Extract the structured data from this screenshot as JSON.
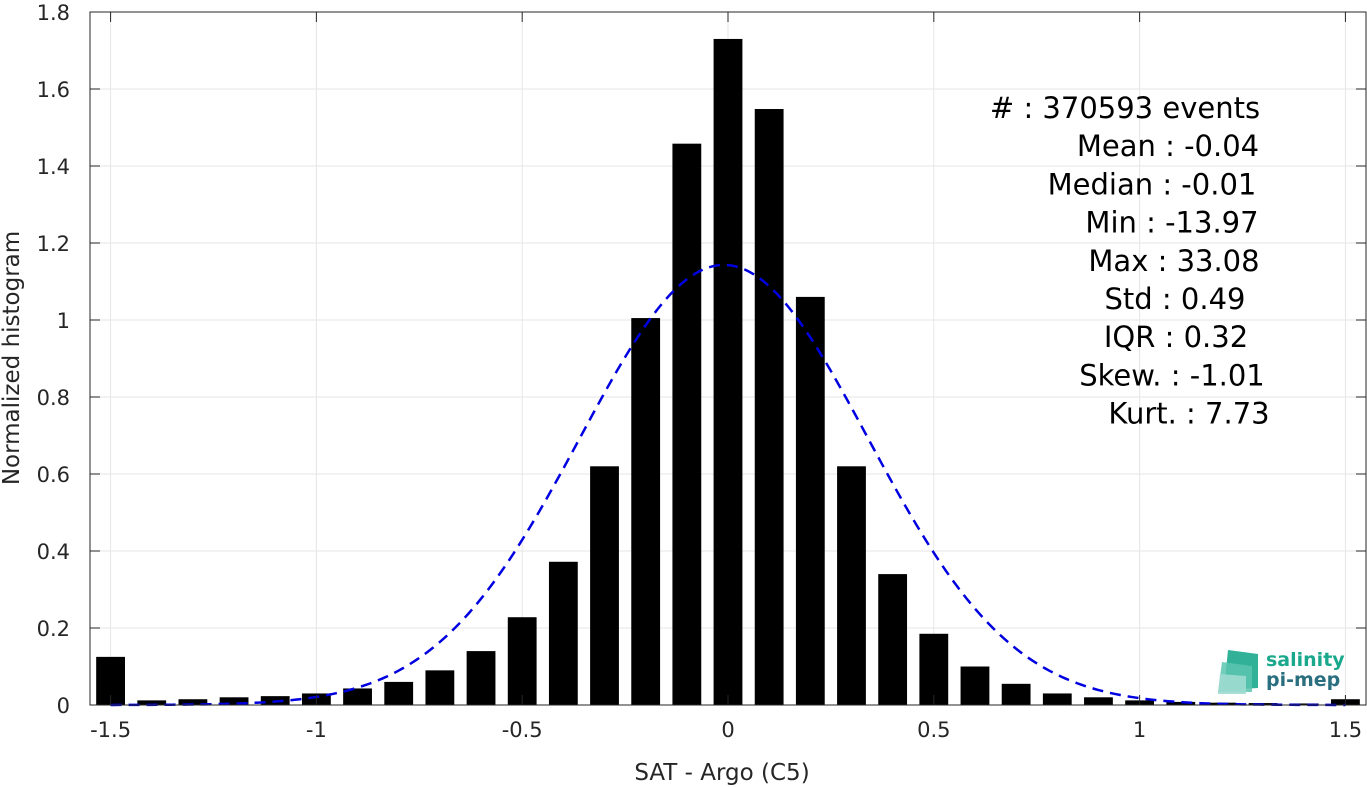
{
  "chart_data": {
    "type": "bar",
    "xlabel": "SAT - Argo (C5)",
    "ylabel": "Normalized histogram",
    "xlim": [
      -1.55,
      1.55
    ],
    "ylim": [
      0,
      1.8
    ],
    "xticks": [
      -1.5,
      -1,
      -0.5,
      0,
      0.5,
      1,
      1.5
    ],
    "xtick_labels": [
      "-1.5",
      "-1",
      "-0.5",
      "0",
      "0.5",
      "1",
      "1.5"
    ],
    "yticks": [
      0,
      0.2,
      0.4,
      0.6,
      0.8,
      1,
      1.2,
      1.4,
      1.6,
      1.8
    ],
    "ytick_labels": [
      "0",
      "0.2",
      "0.4",
      "0.6",
      "0.8",
      "1",
      "1.2",
      "1.4",
      "1.6",
      "1.8"
    ],
    "grid": true,
    "bar_width": 0.07,
    "bars": {
      "x": [
        -1.5,
        -1.4,
        -1.3,
        -1.2,
        -1.1,
        -1.0,
        -0.9,
        -0.8,
        -0.7,
        -0.6,
        -0.5,
        -0.4,
        -0.3,
        -0.2,
        -0.1,
        0.0,
        0.1,
        0.2,
        0.3,
        0.4,
        0.5,
        0.6,
        0.7,
        0.8,
        0.9,
        1.0,
        1.1,
        1.2,
        1.3,
        1.4,
        1.5
      ],
      "values": [
        0.125,
        0.012,
        0.015,
        0.02,
        0.023,
        0.03,
        0.043,
        0.06,
        0.09,
        0.14,
        0.228,
        0.372,
        0.62,
        1.005,
        1.458,
        1.73,
        1.548,
        1.06,
        0.62,
        0.34,
        0.185,
        0.1,
        0.055,
        0.03,
        0.02,
        0.012,
        0.008,
        0.006,
        0.005,
        0.004,
        0.015
      ],
      "color": "#000000"
    },
    "fit": {
      "style": "dashed",
      "color": "#0000e0",
      "mean": -0.01,
      "std": 0.35,
      "peak": 1.143
    },
    "stats": [
      "#  : 370593 events",
      "Mean : -0.04",
      "Median : -0.01",
      "Min : -13.97",
      "Max : 33.08",
      "Std : 0.49",
      "IQR : 0.32",
      "Skew. : -1.01",
      "Kurt. : 7.73"
    ]
  },
  "logo": {
    "line1": "salinity",
    "line2": "pi-mep",
    "color1": "#1aa88d",
    "color2": "#2a6f7f"
  }
}
